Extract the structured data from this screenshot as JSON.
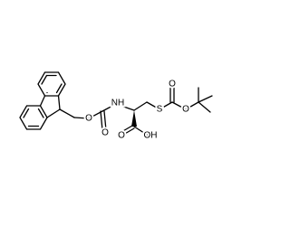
{
  "atoms": [
    {
      "label": "O"
    },
    {
      "label": "O"
    },
    {
      "label": "NH"
    },
    {
      "label": "O"
    },
    {
      "label": "OH"
    },
    {
      "label": "S"
    },
    {
      "label": "O"
    },
    {
      "label": "O"
    }
  ]
}
